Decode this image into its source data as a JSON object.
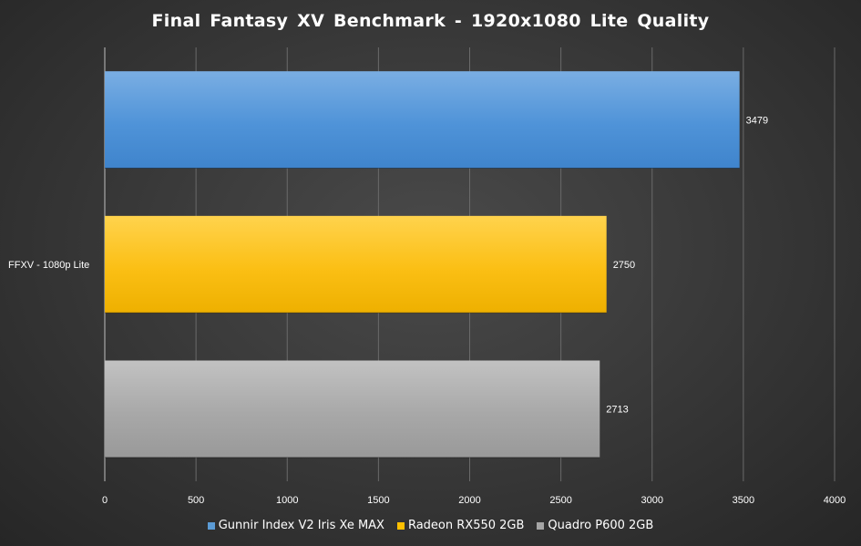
{
  "chart_data": {
    "type": "bar",
    "orientation": "horizontal",
    "title": "Final Fantasy  XV Benchmark  - 1920x1080 Lite Quality",
    "categories": [
      "FFXV - 1080p Lite"
    ],
    "series": [
      {
        "name": "Gunnir Index V2 Iris Xe MAX",
        "values": [
          3479
        ],
        "color": "#5b9bd5"
      },
      {
        "name": "Radeon RX550 2GB",
        "values": [
          2750
        ],
        "color": "#ffc000"
      },
      {
        "name": "Quadro P600 2GB",
        "values": [
          2713
        ],
        "color": "#a5a5a5"
      }
    ],
    "xlim": [
      0,
      4000
    ],
    "xticks": [
      "0",
      "500",
      "1000",
      "1500",
      "2000",
      "2500",
      "3000",
      "3500",
      "4000"
    ],
    "grid": true,
    "legend_position": "bottom"
  }
}
